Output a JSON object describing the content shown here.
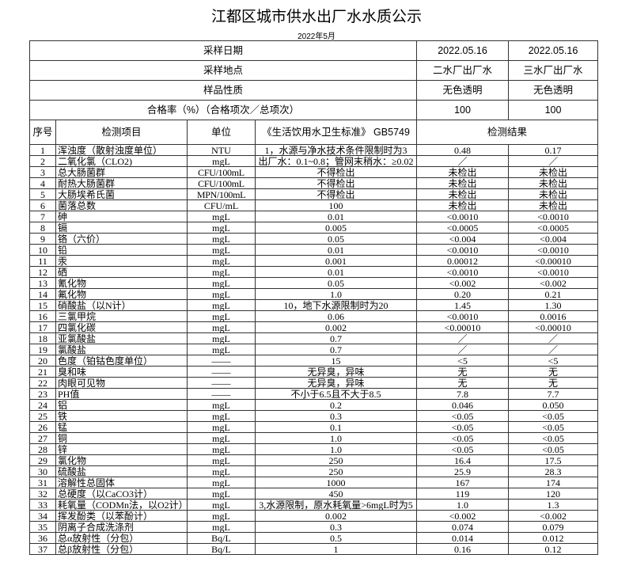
{
  "title": "江都区城市供水出厂水水质公示",
  "subtitle": "2022年5月",
  "summary": [
    {
      "label": "采样日期",
      "values": [
        "2022.05.16",
        "2022.05.16"
      ]
    },
    {
      "label": "采样地点",
      "values": [
        "二水厂出厂水",
        "三水厂出厂水"
      ]
    },
    {
      "label": "样品性质",
      "values": [
        "无色透明",
        "无色透明"
      ]
    },
    {
      "label": "合格率（%）（合格项次／总项次）",
      "values": [
        "100",
        "100"
      ]
    }
  ],
  "headers": {
    "seq": "序号",
    "item": "检测项目",
    "unit": "单位",
    "standard": "《生活饮用水卫生标准》 GB5749",
    "results": "检测结果"
  },
  "rows": [
    [
      "1",
      "浑浊度（散射浊度单位）",
      "NTU",
      "1，水源与净水技术条件限制时为3",
      "0.48",
      "0.17"
    ],
    [
      "2",
      "二氧化氯（CLO2)",
      "mgL",
      "出厂水：0.1~0.8；管网末稍水：≥0.02",
      "／",
      "／"
    ],
    [
      "3",
      "总大肠菌群",
      "CFU/100mL",
      "不得检出",
      "未检出",
      "未检出"
    ],
    [
      "4",
      "耐热大肠菌群",
      "CFU/100mL",
      "不得检出",
      "未检出",
      "未检出"
    ],
    [
      "5",
      "大肠埃希氏菌",
      "MPN/100mL",
      "不得检出",
      "未检出",
      "未检出"
    ],
    [
      "6",
      "菌落总数",
      "CFU/mL",
      "100",
      "未检出",
      "未检出"
    ],
    [
      "7",
      "砷",
      "mgL",
      "0.01",
      "<0.0010",
      "<0.0010"
    ],
    [
      "8",
      "镉",
      "mgL",
      "0.005",
      "<0.0005",
      "<0.0005"
    ],
    [
      "9",
      "铬（六价）",
      "mgL",
      "0.05",
      "<0.004",
      "<0.004"
    ],
    [
      "10",
      "铅",
      "mgL",
      "0.01",
      "<0.0010",
      "<0.0010"
    ],
    [
      "11",
      "汞",
      "mgL",
      "0.001",
      "0.00012",
      "<0.00010"
    ],
    [
      "12",
      "硒",
      "mgL",
      "0.01",
      "<0.0010",
      "<0.0010"
    ],
    [
      "13",
      "氰化物",
      "mgL",
      "0.05",
      "<0.002",
      "<0.002"
    ],
    [
      "14",
      "氟化物",
      "mgL",
      "1.0",
      "0.20",
      "0.21"
    ],
    [
      "15",
      "硝酸盐（以N计）",
      "mgL",
      "10，地下水源限制时为20",
      "1.45",
      "1.30"
    ],
    [
      "16",
      "三氯甲烷",
      "mgL",
      "0.06",
      "<0.0010",
      "0.0016"
    ],
    [
      "17",
      "四氯化碳",
      "mgL",
      "0.002",
      "<0.00010",
      "<0.00010"
    ],
    [
      "18",
      "亚氯酸盐",
      "mgL",
      "0.7",
      "／",
      "／"
    ],
    [
      "19",
      "氯酸盐",
      "mgL",
      "0.7",
      "／",
      "／"
    ],
    [
      "20",
      "色度（铂钴色度单位）",
      "——",
      "15",
      "<5",
      "<5"
    ],
    [
      "21",
      "臭和味",
      "——",
      "无异臭，异味",
      "无",
      "无"
    ],
    [
      "22",
      "肉眼可见物",
      "——",
      "无异臭，异味",
      "无",
      "无"
    ],
    [
      "23",
      "PH值",
      "——",
      "不小于6.5且不大于8.5",
      "7.8",
      "7.7"
    ],
    [
      "24",
      "铝",
      "mgL",
      "0.2",
      "0.046",
      "0.050"
    ],
    [
      "25",
      "铁",
      "mgL",
      "0.3",
      "<0.05",
      "<0.05"
    ],
    [
      "26",
      "锰",
      "mgL",
      "0.1",
      "<0.05",
      "<0.05"
    ],
    [
      "27",
      "铜",
      "mgL",
      "1.0",
      "<0.05",
      "<0.05"
    ],
    [
      "28",
      "锌",
      "mgL",
      "1.0",
      "<0.05",
      "<0.05"
    ],
    [
      "29",
      "氯化物",
      "mgL",
      "250",
      "16.4",
      "17.5"
    ],
    [
      "30",
      "硫酸盐",
      "mgL",
      "250",
      "25.9",
      "28.3"
    ],
    [
      "31",
      "溶解性总固体",
      "mgL",
      "1000",
      "167",
      "174"
    ],
    [
      "32",
      "总硬度（以CaCO3计）",
      "mgL",
      "450",
      "119",
      "120"
    ],
    [
      "33",
      "耗氧量（CODMn法，以O2计）",
      "mgL",
      "3,水源限制，原水耗氧量>6mgL时为5",
      "1.0",
      "1.3"
    ],
    [
      "34",
      "挥发酚类（以苯酚计）",
      "mgL",
      "0.002",
      "<0.002",
      "<0.002"
    ],
    [
      "35",
      "阴离子合成洗涤剂",
      "mgL",
      "0.3",
      "0.074",
      "0.079"
    ],
    [
      "36",
      "总α放射性（分包）",
      "Bq/L",
      "0.5",
      "0.014",
      "0.012"
    ],
    [
      "37",
      "总β放射性（分包）",
      "Bq/L",
      "1",
      "0.16",
      "0.12"
    ]
  ]
}
